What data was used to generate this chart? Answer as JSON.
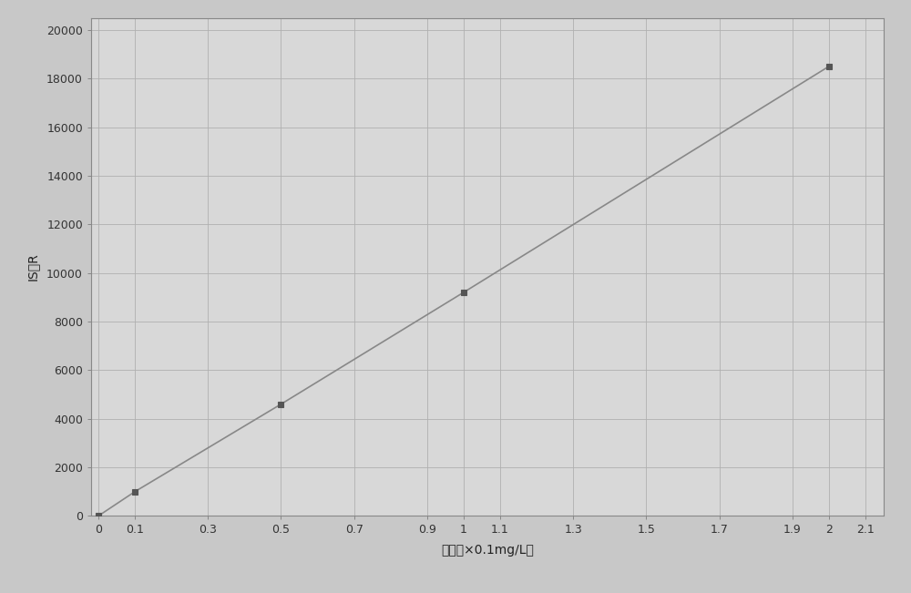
{
  "x_data": [
    0,
    0.1,
    0.5,
    1.0,
    2.0
  ],
  "y_data": [
    0,
    1000,
    4600,
    9200,
    18500
  ],
  "x_ticks": [
    0,
    0.1,
    0.3,
    0.5,
    0.7,
    0.9,
    1.0,
    1.1,
    1.3,
    1.5,
    1.7,
    1.9,
    2.0,
    2.1
  ],
  "x_tick_labels": [
    "0",
    "0.1",
    "0.3",
    "0.5",
    "0.7",
    "0.9",
    "1",
    "1.1",
    "1.3",
    "1.5",
    "1.7",
    "1.9",
    "2",
    "2.1"
  ],
  "y_ticks": [
    0,
    2000,
    4000,
    6000,
    8000,
    10000,
    12000,
    14000,
    16000,
    18000,
    20000
  ],
  "y_tick_labels": [
    "0",
    "2000",
    "4000",
    "6000",
    "8000",
    "10000",
    "12000",
    "14000",
    "16000",
    "18000",
    "20000"
  ],
  "xlabel": "浓度（×0.1mg/L）",
  "ylabel": "IS比R",
  "xlim": [
    -0.02,
    2.15
  ],
  "ylim": [
    0,
    20500
  ],
  "ytop": 20000,
  "line_color": "#888888",
  "marker_color": "#555555",
  "marker_style": "s",
  "marker_size": 5,
  "line_width": 1.2,
  "figure_bg": "#c8c8c8",
  "plot_bg": "#d8d8d8",
  "grid_color": "#b0b0b0",
  "grid_linewidth": 0.6,
  "tick_fontsize": 9,
  "label_fontsize": 10,
  "spine_color": "#888888",
  "noise_alpha": 0.04
}
